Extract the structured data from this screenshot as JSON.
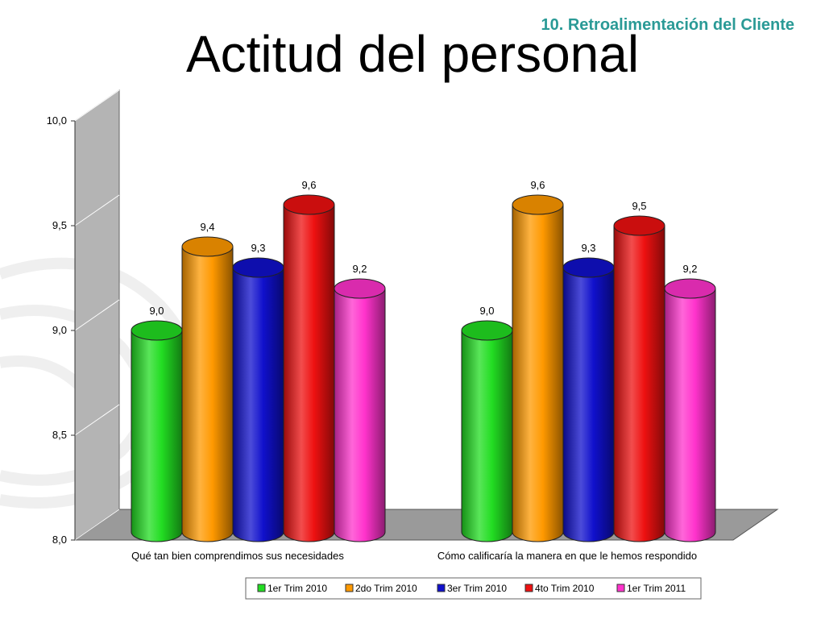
{
  "section_tag": "10. Retroalimentación del Cliente",
  "title": "Actitud del personal",
  "colors": {
    "accent": "#2a9a96",
    "series": [
      "#22dd22",
      "#ff9900",
      "#1010cc",
      "#ee1111",
      "#ff33cc"
    ]
  },
  "chart_data": {
    "type": "bar",
    "categories": [
      "Qué tan bien comprendimos sus necesidades",
      "Cómo calificaría la manera en que le hemos respondido"
    ],
    "series": [
      {
        "name": "1er Trim 2010",
        "values": [
          9.0,
          9.0
        ],
        "labels": [
          "9,0",
          "9,0"
        ]
      },
      {
        "name": "2do Trim 2010",
        "values": [
          9.4,
          9.6
        ],
        "labels": [
          "9,4",
          "9,6"
        ]
      },
      {
        "name": "3er Trim 2010",
        "values": [
          9.3,
          9.3
        ],
        "labels": [
          "9,3",
          "9,3"
        ]
      },
      {
        "name": "4to Trim 2010",
        "values": [
          9.6,
          9.5
        ],
        "labels": [
          "9,6",
          "9,5"
        ]
      },
      {
        "name": "1er Trim 2011",
        "values": [
          9.2,
          9.2
        ],
        "labels": [
          "9,2",
          "9,2"
        ]
      }
    ],
    "ylim": [
      8.0,
      10.0
    ],
    "yticks": [
      "8,0",
      "8,5",
      "9,0",
      "9,5",
      "10,0"
    ],
    "ytick_values": [
      8.0,
      8.5,
      9.0,
      9.5,
      10.0
    ],
    "style": "3d-cylinder",
    "legend": "bottom",
    "grid": true
  }
}
